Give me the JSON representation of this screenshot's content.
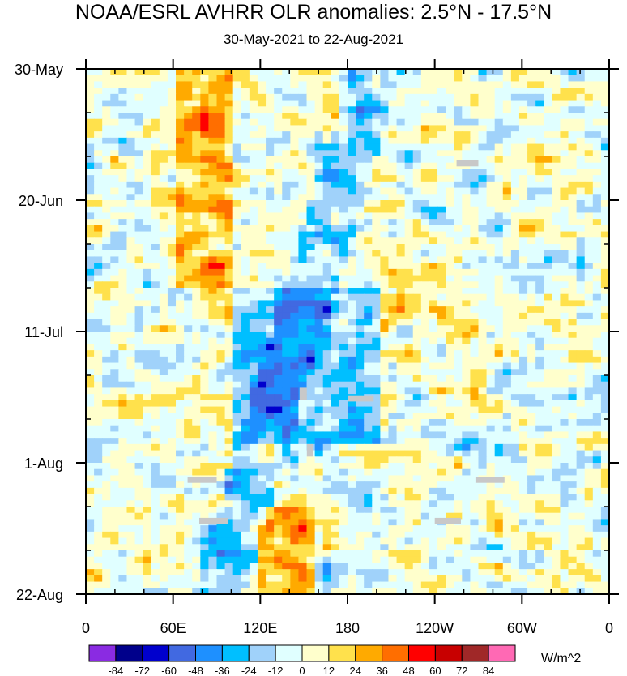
{
  "chart_data": {
    "type": "heatmap",
    "title": "NOAA/ESRL AVHRR OLR anomalies: 2.5°N - 17.5°N",
    "subtitle": "30-May-2021 to 22-Aug-2021",
    "y_tick_labels": [
      "30-May",
      "20-Jun",
      "11-Jul",
      "1-Aug",
      "22-Aug"
    ],
    "x_tick_labels": [
      "0",
      "60E",
      "120E",
      "180",
      "120W",
      "60W",
      "0"
    ],
    "x_range_degrees_east": [
      0,
      360
    ],
    "y_range_days_from_start": [
      0,
      84
    ],
    "colorbar": {
      "units": "W/m^2",
      "labels": [
        "-84",
        "-72",
        "-60",
        "-48",
        "-36",
        "-24",
        "-12",
        "0",
        "12",
        "24",
        "36",
        "48",
        "60",
        "72",
        "84"
      ],
      "colors": [
        "#8a2be2",
        "#00008b",
        "#0000cd",
        "#4169e1",
        "#1e90ff",
        "#00bfff",
        "#a0d2fa",
        "#e0ffff",
        "#ffffcc",
        "#ffe14c",
        "#ffaa00",
        "#ff6e00",
        "#ff0000",
        "#c80000",
        "#a02828",
        "#ff69b4"
      ]
    },
    "missing_color": "#c8c8c8",
    "features": [
      {
        "kind": "positive anomaly band",
        "lon_start": 60,
        "lon_end": 100,
        "day_start": 0,
        "day_end": 35,
        "value": 40
      },
      {
        "kind": "positive anomaly band",
        "lon_start": 120,
        "lon_end": 160,
        "day_start": 70,
        "day_end": 84,
        "value": 40
      },
      {
        "kind": "negative anomaly streak",
        "lon_start": 100,
        "lon_end": 200,
        "day_start": 35,
        "day_end": 60,
        "value": -40
      }
    ]
  }
}
